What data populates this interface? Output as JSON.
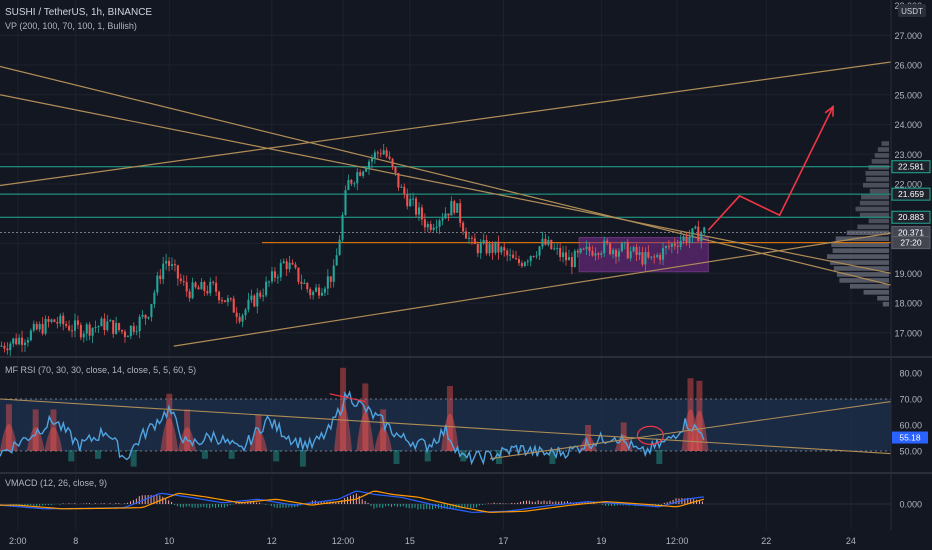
{
  "header": {
    "title": "SUSHI / TetherUS, 1h, BINANCE",
    "indicator": "VP (200, 100, 70, 100, 1, Bullish)",
    "currency": "USDT"
  },
  "price_axis": {
    "ticks": [
      "17.000",
      "18.000",
      "19.000",
      "20.000",
      "22.000",
      "23.000",
      "24.000",
      "25.000",
      "26.000",
      "27.000",
      "28.000"
    ]
  },
  "price_labels": [
    {
      "text": "22.581",
      "price": 22.581
    },
    {
      "text": "21.659",
      "price": 21.659
    },
    {
      "text": "20.883",
      "price": 20.883
    },
    {
      "text": "20.371",
      "price": 20.371
    },
    {
      "text": "27:20",
      "price": 20.03
    }
  ],
  "rsi_panel": {
    "title": "MF RSI (70, 30, 30, close, 14, close, 5, 5, 60, 5)",
    "ticks": [
      "50.00",
      "60.00",
      "70.00",
      "80.00"
    ],
    "last_label": "55.18"
  },
  "vmacd_panel": {
    "title": "VMACD (12, 26, close, 9)",
    "ticks": [
      "0.000"
    ]
  },
  "time_axis": {
    "ticks": [
      "2:00",
      "8",
      "10",
      "12",
      "12:00",
      "15",
      "17",
      "19",
      "12:00",
      "22",
      "24"
    ]
  },
  "colors": {
    "background": "#131722",
    "up": "#26a69a",
    "down": "#ef5350",
    "trendline": "#b08d57",
    "level_line": "#22ab94",
    "arrow": "#f23645",
    "rsi_line": "#4fa3e0",
    "box": "#7b2d8f",
    "orange_line": "#f57c00"
  },
  "chart_data": [
    {
      "type": "candlestick",
      "title": "SUSHI / TetherUS, 1h, BINANCE",
      "x_ticks": [
        "2:00",
        "8",
        "10",
        "12",
        "12:00",
        "15",
        "17",
        "19",
        "12:00",
        "22",
        "24"
      ],
      "ylim": [
        16.5,
        28.0
      ],
      "close_path": [
        {
          "x": 0.0,
          "y": 16.55
        },
        {
          "x": 0.03,
          "y": 16.9
        },
        {
          "x": 0.06,
          "y": 17.4
        },
        {
          "x": 0.09,
          "y": 17.1
        },
        {
          "x": 0.12,
          "y": 17.3
        },
        {
          "x": 0.14,
          "y": 17.0
        },
        {
          "x": 0.165,
          "y": 17.6
        },
        {
          "x": 0.185,
          "y": 19.5
        },
        {
          "x": 0.21,
          "y": 18.4
        },
        {
          "x": 0.24,
          "y": 18.5
        },
        {
          "x": 0.27,
          "y": 17.6
        },
        {
          "x": 0.3,
          "y": 18.6
        },
        {
          "x": 0.32,
          "y": 19.4
        },
        {
          "x": 0.35,
          "y": 18.3
        },
        {
          "x": 0.375,
          "y": 19.0
        },
        {
          "x": 0.39,
          "y": 22.0
        },
        {
          "x": 0.41,
          "y": 22.7
        },
        {
          "x": 0.43,
          "y": 23.2
        },
        {
          "x": 0.45,
          "y": 21.8
        },
        {
          "x": 0.48,
          "y": 20.6
        },
        {
          "x": 0.51,
          "y": 21.3
        },
        {
          "x": 0.53,
          "y": 19.9
        },
        {
          "x": 0.56,
          "y": 19.8
        },
        {
          "x": 0.58,
          "y": 19.3
        },
        {
          "x": 0.61,
          "y": 20.0
        },
        {
          "x": 0.64,
          "y": 19.4
        },
        {
          "x": 0.67,
          "y": 19.9
        },
        {
          "x": 0.7,
          "y": 19.8
        },
        {
          "x": 0.73,
          "y": 19.4
        },
        {
          "x": 0.76,
          "y": 20.1
        },
        {
          "x": 0.79,
          "y": 20.4
        }
      ],
      "projection": [
        {
          "x": 0.795,
          "y": 20.45
        },
        {
          "x": 0.83,
          "y": 21.6
        },
        {
          "x": 0.875,
          "y": 20.95
        },
        {
          "x": 0.935,
          "y": 24.6
        }
      ],
      "consolidation_box": {
        "x0": 0.65,
        "x1": 0.795,
        "y0": 19.05,
        "y1": 20.2
      },
      "horizontal_levels": [
        22.581,
        21.659,
        20.883,
        20.371,
        20.03
      ],
      "trendlines": [
        {
          "x0": 0.0,
          "y0": 25.95,
          "x1": 1.0,
          "y1": 18.6
        },
        {
          "x0": 0.0,
          "y0": 25.0,
          "x1": 1.0,
          "y1": 19.0
        },
        {
          "x0": 0.0,
          "y0": 21.95,
          "x1": 1.0,
          "y1": 26.1
        },
        {
          "x0": 0.195,
          "y0": 16.55,
          "x1": 1.0,
          "y1": 20.35
        }
      ],
      "volume_profile": [
        {
          "price": 17.95,
          "w": 0.1
        },
        {
          "price": 18.15,
          "w": 0.19
        },
        {
          "price": 18.35,
          "w": 0.41
        },
        {
          "price": 18.55,
          "w": 0.63
        },
        {
          "price": 18.75,
          "w": 0.8
        },
        {
          "price": 18.95,
          "w": 0.84
        },
        {
          "price": 19.15,
          "w": 0.89
        },
        {
          "price": 19.35,
          "w": 0.95
        },
        {
          "price": 19.55,
          "w": 1.0
        },
        {
          "price": 19.75,
          "w": 0.91
        },
        {
          "price": 19.95,
          "w": 0.93
        },
        {
          "price": 20.15,
          "w": 0.86
        },
        {
          "price": 20.35,
          "w": 0.68
        },
        {
          "price": 20.55,
          "w": 0.51
        },
        {
          "price": 20.75,
          "w": 0.33
        },
        {
          "price": 20.95,
          "w": 0.47
        },
        {
          "price": 21.15,
          "w": 0.54
        },
        {
          "price": 21.35,
          "w": 0.47
        },
        {
          "price": 21.55,
          "w": 0.45
        },
        {
          "price": 21.75,
          "w": 0.31
        },
        {
          "price": 21.95,
          "w": 0.42
        },
        {
          "price": 22.15,
          "w": 0.37
        },
        {
          "price": 22.35,
          "w": 0.38
        },
        {
          "price": 22.55,
          "w": 0.33
        },
        {
          "price": 22.75,
          "w": 0.28
        },
        {
          "price": 22.95,
          "w": 0.23
        },
        {
          "price": 23.15,
          "w": 0.18
        },
        {
          "price": 23.35,
          "w": 0.12
        }
      ]
    },
    {
      "type": "area",
      "title": "MF RSI (70, 30, 30, close, 14, close, 5, 5, 60, 5)",
      "ylim": [
        43,
        84
      ],
      "bands": [
        50,
        70
      ],
      "rsi": [
        {
          "x": 0.0,
          "y": 49
        },
        {
          "x": 0.03,
          "y": 55
        },
        {
          "x": 0.06,
          "y": 62
        },
        {
          "x": 0.09,
          "y": 52
        },
        {
          "x": 0.12,
          "y": 58
        },
        {
          "x": 0.14,
          "y": 47
        },
        {
          "x": 0.16,
          "y": 56
        },
        {
          "x": 0.19,
          "y": 66
        },
        {
          "x": 0.21,
          "y": 52
        },
        {
          "x": 0.24,
          "y": 56
        },
        {
          "x": 0.27,
          "y": 50
        },
        {
          "x": 0.3,
          "y": 62
        },
        {
          "x": 0.33,
          "y": 54
        },
        {
          "x": 0.35,
          "y": 52
        },
        {
          "x": 0.37,
          "y": 58
        },
        {
          "x": 0.39,
          "y": 72
        },
        {
          "x": 0.41,
          "y": 66
        },
        {
          "x": 0.43,
          "y": 61
        },
        {
          "x": 0.45,
          "y": 55
        },
        {
          "x": 0.48,
          "y": 52
        },
        {
          "x": 0.5,
          "y": 58
        },
        {
          "x": 0.52,
          "y": 47
        },
        {
          "x": 0.55,
          "y": 48
        },
        {
          "x": 0.58,
          "y": 51
        },
        {
          "x": 0.61,
          "y": 49
        },
        {
          "x": 0.64,
          "y": 50
        },
        {
          "x": 0.66,
          "y": 53
        },
        {
          "x": 0.69,
          "y": 56
        },
        {
          "x": 0.72,
          "y": 49
        },
        {
          "x": 0.75,
          "y": 54
        },
        {
          "x": 0.77,
          "y": 61
        },
        {
          "x": 0.79,
          "y": 56
        }
      ],
      "histogram": [
        {
          "x": 0.01,
          "v": 68
        },
        {
          "x": 0.04,
          "v": 66
        },
        {
          "x": 0.06,
          "v": 66
        },
        {
          "x": 0.08,
          "v": 46
        },
        {
          "x": 0.11,
          "v": 47
        },
        {
          "x": 0.15,
          "v": 44
        },
        {
          "x": 0.19,
          "v": 72
        },
        {
          "x": 0.21,
          "v": 66
        },
        {
          "x": 0.23,
          "v": 47
        },
        {
          "x": 0.26,
          "v": 47
        },
        {
          "x": 0.29,
          "v": 64
        },
        {
          "x": 0.31,
          "v": 46
        },
        {
          "x": 0.34,
          "v": 44
        },
        {
          "x": 0.385,
          "v": 82
        },
        {
          "x": 0.41,
          "v": 76
        },
        {
          "x": 0.43,
          "v": 66
        },
        {
          "x": 0.445,
          "v": 45
        },
        {
          "x": 0.48,
          "v": 46
        },
        {
          "x": 0.505,
          "v": 75
        },
        {
          "x": 0.52,
          "v": 46
        },
        {
          "x": 0.56,
          "v": 45
        },
        {
          "x": 0.62,
          "v": 45
        },
        {
          "x": 0.66,
          "v": 60
        },
        {
          "x": 0.7,
          "v": 61
        },
        {
          "x": 0.74,
          "v": 45
        },
        {
          "x": 0.775,
          "v": 78
        },
        {
          "x": 0.785,
          "v": 77
        }
      ]
    },
    {
      "type": "bar",
      "title": "VMACD (12, 26, close, 9)",
      "ylim": [
        -1,
        1
      ],
      "macd": [
        {
          "x": 0.0,
          "y": -0.05
        },
        {
          "x": 0.05,
          "y": -0.2
        },
        {
          "x": 0.1,
          "y": -0.18
        },
        {
          "x": 0.14,
          "y": -0.15
        },
        {
          "x": 0.18,
          "y": 0.45
        },
        {
          "x": 0.21,
          "y": 0.3
        },
        {
          "x": 0.25,
          "y": 0.05
        },
        {
          "x": 0.29,
          "y": 0.2
        },
        {
          "x": 0.33,
          "y": -0.05
        },
        {
          "x": 0.38,
          "y": 0.2
        },
        {
          "x": 0.4,
          "y": 0.55
        },
        {
          "x": 0.42,
          "y": 0.4
        },
        {
          "x": 0.45,
          "y": 0.28
        },
        {
          "x": 0.5,
          "y": -0.15
        },
        {
          "x": 0.53,
          "y": -0.35
        },
        {
          "x": 0.57,
          "y": -0.3
        },
        {
          "x": 0.62,
          "y": -0.05
        },
        {
          "x": 0.66,
          "y": 0.1
        },
        {
          "x": 0.7,
          "y": 0.0
        },
        {
          "x": 0.74,
          "y": -0.12
        },
        {
          "x": 0.77,
          "y": 0.2
        },
        {
          "x": 0.79,
          "y": 0.3
        }
      ]
    }
  ]
}
